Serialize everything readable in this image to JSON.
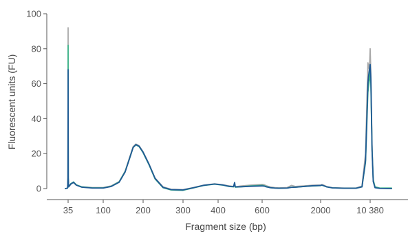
{
  "chart_data": {
    "type": "line",
    "xlabel": "Fragment size (bp)",
    "ylabel": "Fluorescent units (FU)",
    "ylim": [
      0,
      100
    ],
    "yticks": [
      0,
      20,
      40,
      60,
      80,
      100
    ],
    "x_ticks": [
      {
        "label": "35",
        "bp": 35
      },
      {
        "label": "100",
        "bp": 100
      },
      {
        "label": "200",
        "bp": 200
      },
      {
        "label": "300",
        "bp": 300
      },
      {
        "label": "400",
        "bp": 400
      },
      {
        "label": "600",
        "bp": 600
      },
      {
        "label": "2000",
        "bp": 2000
      },
      {
        "label": "10 380",
        "bp": 10380
      }
    ],
    "grid": false,
    "legend": "none",
    "series": [
      {
        "color": "#a9a9a9",
        "points": [
          [
            30,
            0
          ],
          [
            34,
            0.3
          ],
          [
            34.7,
            6
          ],
          [
            35,
            92
          ],
          [
            35.3,
            6
          ],
          [
            36,
            1
          ],
          [
            40,
            2.5
          ],
          [
            45,
            3.5
          ],
          [
            50,
            2
          ],
          [
            60,
            1
          ],
          [
            80,
            0.6
          ],
          [
            100,
            0.6
          ],
          [
            120,
            1.5
          ],
          [
            140,
            4
          ],
          [
            155,
            10
          ],
          [
            165,
            17
          ],
          [
            175,
            24
          ],
          [
            182,
            25.5
          ],
          [
            190,
            24.5
          ],
          [
            200,
            21
          ],
          [
            215,
            14
          ],
          [
            230,
            6
          ],
          [
            250,
            1
          ],
          [
            270,
            -0.4
          ],
          [
            300,
            -0.6
          ],
          [
            330,
            0.6
          ],
          [
            360,
            2
          ],
          [
            390,
            2.7
          ],
          [
            420,
            2.2
          ],
          [
            450,
            1.5
          ],
          [
            470,
            1.2
          ],
          [
            475,
            2.5
          ],
          [
            478,
            1
          ],
          [
            500,
            1.4
          ],
          [
            550,
            2
          ],
          [
            600,
            2.4
          ],
          [
            650,
            2.2
          ],
          [
            700,
            1.6
          ],
          [
            800,
            0.9
          ],
          [
            900,
            0.6
          ],
          [
            1000,
            0.4
          ],
          [
            1200,
            0.6
          ],
          [
            1300,
            1.8
          ],
          [
            1400,
            1.2
          ],
          [
            1600,
            1.5
          ],
          [
            1800,
            1.9
          ],
          [
            2000,
            2
          ],
          [
            2200,
            2.3
          ],
          [
            2500,
            2
          ],
          [
            3000,
            1.2
          ],
          [
            4000,
            0.5
          ],
          [
            6000,
            0.3
          ],
          [
            8000,
            0.3
          ],
          [
            9000,
            1.5
          ],
          [
            9600,
            20
          ],
          [
            10000,
            72
          ],
          [
            10100,
            70
          ],
          [
            10250,
            68
          ],
          [
            10380,
            80
          ],
          [
            10500,
            66
          ],
          [
            10700,
            25
          ],
          [
            10900,
            5
          ],
          [
            11200,
            1
          ],
          [
            12000,
            0.2
          ],
          [
            14000,
            0
          ]
        ]
      },
      {
        "color": "#3db58a",
        "points": [
          [
            30,
            0
          ],
          [
            34,
            0.3
          ],
          [
            34.7,
            6
          ],
          [
            35,
            82
          ],
          [
            35.3,
            6
          ],
          [
            36,
            1
          ],
          [
            40,
            2.8
          ],
          [
            45,
            3.8
          ],
          [
            50,
            2.2
          ],
          [
            60,
            1
          ],
          [
            80,
            0.4
          ],
          [
            100,
            0.4
          ],
          [
            120,
            1.3
          ],
          [
            140,
            3.8
          ],
          [
            155,
            9.8
          ],
          [
            165,
            16.5
          ],
          [
            175,
            23.5
          ],
          [
            182,
            25
          ],
          [
            190,
            24
          ],
          [
            200,
            20.5
          ],
          [
            215,
            13.5
          ],
          [
            230,
            5.5
          ],
          [
            250,
            0.5
          ],
          [
            270,
            -0.8
          ],
          [
            300,
            -1
          ],
          [
            330,
            0.4
          ],
          [
            360,
            1.8
          ],
          [
            390,
            2.5
          ],
          [
            420,
            2
          ],
          [
            450,
            1.2
          ],
          [
            470,
            1
          ],
          [
            475,
            2.2
          ],
          [
            478,
            0.8
          ],
          [
            500,
            1
          ],
          [
            550,
            1.5
          ],
          [
            600,
            1.8
          ],
          [
            650,
            1.6
          ],
          [
            700,
            1.2
          ],
          [
            800,
            0.5
          ],
          [
            900,
            0.3
          ],
          [
            1000,
            0.2
          ],
          [
            1200,
            0.3
          ],
          [
            1300,
            0.8
          ],
          [
            1400,
            0.8
          ],
          [
            1600,
            1.2
          ],
          [
            1800,
            1.5
          ],
          [
            2000,
            1.7
          ],
          [
            2200,
            1.9
          ],
          [
            2500,
            1.6
          ],
          [
            3000,
            1
          ],
          [
            4000,
            0.4
          ],
          [
            6000,
            0.2
          ],
          [
            8000,
            0.2
          ],
          [
            9000,
            1
          ],
          [
            9600,
            15
          ],
          [
            10000,
            55
          ],
          [
            10100,
            58
          ],
          [
            10250,
            62
          ],
          [
            10380,
            67
          ],
          [
            10500,
            60
          ],
          [
            10700,
            22
          ],
          [
            10900,
            5
          ],
          [
            11200,
            1
          ],
          [
            12000,
            0.3
          ],
          [
            14000,
            0.3
          ]
        ]
      },
      {
        "color": "#1f5a94",
        "points": [
          [
            30,
            0
          ],
          [
            34,
            0.3
          ],
          [
            34.7,
            6
          ],
          [
            35,
            68
          ],
          [
            35.3,
            6
          ],
          [
            36,
            1
          ],
          [
            40,
            2.6
          ],
          [
            45,
            3.6
          ],
          [
            50,
            2
          ],
          [
            60,
            0.8
          ],
          [
            80,
            0.3
          ],
          [
            100,
            0.3
          ],
          [
            120,
            1.2
          ],
          [
            140,
            3.6
          ],
          [
            155,
            9.5
          ],
          [
            165,
            16.5
          ],
          [
            175,
            23.5
          ],
          [
            182,
            25.2
          ],
          [
            190,
            24.2
          ],
          [
            200,
            20.8
          ],
          [
            215,
            13.8
          ],
          [
            230,
            5.8
          ],
          [
            250,
            0.7
          ],
          [
            270,
            -0.6
          ],
          [
            300,
            -0.8
          ],
          [
            330,
            0.5
          ],
          [
            360,
            1.9
          ],
          [
            390,
            2.6
          ],
          [
            420,
            2.1
          ],
          [
            450,
            1.3
          ],
          [
            470,
            1.1
          ],
          [
            475,
            3.5
          ],
          [
            478,
            1
          ],
          [
            500,
            1
          ],
          [
            550,
            1.3
          ],
          [
            600,
            1.5
          ],
          [
            650,
            1.4
          ],
          [
            700,
            1
          ],
          [
            800,
            0.5
          ],
          [
            900,
            0.3
          ],
          [
            1000,
            0.2
          ],
          [
            1200,
            0.3
          ],
          [
            1300,
            0.7
          ],
          [
            1400,
            0.8
          ],
          [
            1600,
            1.2
          ],
          [
            1800,
            1.6
          ],
          [
            2000,
            1.8
          ],
          [
            2200,
            2
          ],
          [
            2500,
            1.7
          ],
          [
            3000,
            1
          ],
          [
            4000,
            0.4
          ],
          [
            6000,
            0.2
          ],
          [
            8000,
            0.2
          ],
          [
            9000,
            1
          ],
          [
            9600,
            16
          ],
          [
            10000,
            60
          ],
          [
            10100,
            64
          ],
          [
            10250,
            68
          ],
          [
            10380,
            71
          ],
          [
            10500,
            63
          ],
          [
            10700,
            22
          ],
          [
            10900,
            4
          ],
          [
            11200,
            0.5
          ],
          [
            12000,
            0.1
          ],
          [
            14000,
            0
          ]
        ]
      }
    ]
  }
}
